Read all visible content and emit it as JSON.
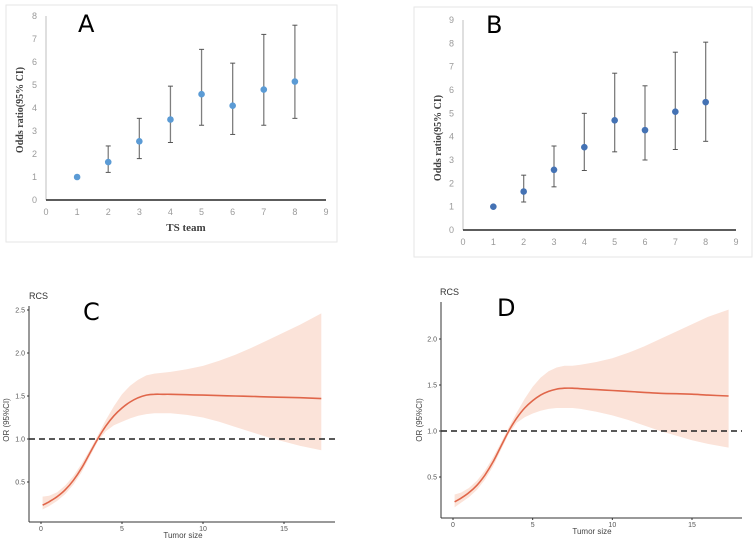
{
  "chart_data": [
    {
      "id": "A",
      "type": "scatter",
      "panel_label": "A",
      "title": "",
      "xlabel": "TS team",
      "ylabel": "Odds ratio(95% CI)",
      "xlim": [
        0,
        9
      ],
      "ylim": [
        0,
        8
      ],
      "xticks": [
        "0",
        "1",
        "2",
        "3",
        "4",
        "5",
        "6",
        "7",
        "8",
        "9"
      ],
      "yticks": [
        "0",
        "1",
        "2",
        "3",
        "4",
        "5",
        "6",
        "7",
        "8"
      ],
      "grid": false,
      "marker_color": "#5b9bd5",
      "errorbar_color": "#7f7f7f",
      "points": [
        {
          "x": 1,
          "y": 1.0,
          "lo": 1.0,
          "hi": 1.0
        },
        {
          "x": 2,
          "y": 1.65,
          "lo": 1.2,
          "hi": 2.35
        },
        {
          "x": 3,
          "y": 2.55,
          "lo": 1.8,
          "hi": 3.55
        },
        {
          "x": 4,
          "y": 3.5,
          "lo": 2.5,
          "hi": 4.95
        },
        {
          "x": 5,
          "y": 4.6,
          "lo": 3.25,
          "hi": 6.55
        },
        {
          "x": 6,
          "y": 4.1,
          "lo": 2.85,
          "hi": 5.95
        },
        {
          "x": 7,
          "y": 4.8,
          "lo": 3.25,
          "hi": 7.2
        },
        {
          "x": 8,
          "y": 5.15,
          "lo": 3.55,
          "hi": 7.6
        }
      ]
    },
    {
      "id": "B",
      "type": "scatter",
      "panel_label": "B",
      "title": "",
      "xlabel": "",
      "ylabel": "Odds ratio(95% CI)",
      "xlim": [
        0,
        9
      ],
      "ylim": [
        0,
        9
      ],
      "xticks": [
        "0",
        "1",
        "2",
        "3",
        "4",
        "5",
        "6",
        "7",
        "8",
        "9"
      ],
      "yticks": [
        "0",
        "1",
        "2",
        "3",
        "4",
        "5",
        "6",
        "7",
        "8",
        "9"
      ],
      "grid": false,
      "marker_color": "#4472b4",
      "errorbar_color": "#7f7f7f",
      "points": [
        {
          "x": 1,
          "y": 1.0,
          "lo": 1.0,
          "hi": 1.0
        },
        {
          "x": 2,
          "y": 1.65,
          "lo": 1.2,
          "hi": 2.35
        },
        {
          "x": 3,
          "y": 2.58,
          "lo": 1.85,
          "hi": 3.6
        },
        {
          "x": 4,
          "y": 3.55,
          "lo": 2.55,
          "hi": 5.0
        },
        {
          "x": 5,
          "y": 4.7,
          "lo": 3.35,
          "hi": 6.72
        },
        {
          "x": 6,
          "y": 4.28,
          "lo": 3.0,
          "hi": 6.18
        },
        {
          "x": 7,
          "y": 5.07,
          "lo": 3.45,
          "hi": 7.62
        },
        {
          "x": 8,
          "y": 5.48,
          "lo": 3.8,
          "hi": 8.05
        }
      ]
    },
    {
      "id": "C",
      "type": "line",
      "panel_label": "C",
      "title": "RCS",
      "xlabel": "Tumor size",
      "ylabel": "OR (95%CI)",
      "xlim": [
        -0.7,
        18
      ],
      "ylim": [
        0.1,
        2.6
      ],
      "xticks": [
        0,
        5,
        10,
        15
      ],
      "xtick_labels": [
        "0",
        "5",
        "10",
        "15"
      ],
      "yticks": [
        0.5,
        1.0,
        1.5,
        2.0,
        2.5
      ],
      "ytick_labels": [
        "0.5",
        "1.0",
        "1.5",
        "2.0",
        "2.5"
      ],
      "reference_line": 1.0,
      "line_color": "#e0664a",
      "band_color": "#fbe3d9",
      "x": [
        0.1,
        0.5,
        1,
        1.5,
        2,
        2.5,
        3,
        3.5,
        4,
        4.5,
        5,
        5.5,
        6,
        6.5,
        7,
        7.5,
        8,
        9,
        10,
        11,
        12,
        13,
        14,
        15,
        16,
        17.3
      ],
      "y": [
        0.23,
        0.27,
        0.33,
        0.41,
        0.52,
        0.66,
        0.83,
        1.0,
        1.15,
        1.27,
        1.36,
        1.43,
        1.48,
        1.51,
        1.52,
        1.52,
        1.52,
        1.515,
        1.51,
        1.505,
        1.5,
        1.495,
        1.49,
        1.485,
        1.48,
        1.47
      ],
      "lower": [
        0.18,
        0.22,
        0.28,
        0.36,
        0.47,
        0.61,
        0.79,
        0.97,
        1.09,
        1.16,
        1.2,
        1.24,
        1.27,
        1.29,
        1.3,
        1.3,
        1.3,
        1.28,
        1.25,
        1.2,
        1.14,
        1.08,
        1.02,
        0.97,
        0.92,
        0.87
      ],
      "upper": [
        0.33,
        0.34,
        0.38,
        0.46,
        0.57,
        0.71,
        0.87,
        1.04,
        1.22,
        1.38,
        1.52,
        1.62,
        1.69,
        1.74,
        1.76,
        1.77,
        1.78,
        1.81,
        1.85,
        1.91,
        1.98,
        2.06,
        2.15,
        2.24,
        2.33,
        2.46
      ]
    },
    {
      "id": "D",
      "type": "line",
      "panel_label": "D",
      "title": "RCS",
      "xlabel": "Tumor size",
      "ylabel": "OR (95%CI)",
      "xlim": [
        -0.7,
        18
      ],
      "ylim": [
        0.05,
        2.4
      ],
      "xticks": [
        0,
        5,
        10,
        15
      ],
      "xtick_labels": [
        "0",
        "5",
        "10",
        "15"
      ],
      "yticks": [
        0.5,
        1.0,
        1.5,
        2.0
      ],
      "ytick_labels": [
        "0.5",
        "1.0",
        "1.5",
        "2.0"
      ],
      "reference_line": 1.0,
      "line_color": "#e0664a",
      "band_color": "#fbe3d9",
      "x": [
        0.1,
        0.5,
        1,
        1.5,
        2,
        2.5,
        3,
        3.5,
        4,
        4.5,
        5,
        5.5,
        6,
        6.5,
        7,
        7.5,
        8,
        9,
        10,
        11,
        12,
        13,
        14,
        15,
        16,
        17.3
      ],
      "y": [
        0.23,
        0.27,
        0.33,
        0.41,
        0.52,
        0.66,
        0.83,
        1.0,
        1.14,
        1.25,
        1.33,
        1.39,
        1.43,
        1.455,
        1.465,
        1.465,
        1.46,
        1.45,
        1.44,
        1.43,
        1.42,
        1.41,
        1.405,
        1.4,
        1.39,
        1.38
      ],
      "lower": [
        0.17,
        0.22,
        0.28,
        0.36,
        0.47,
        0.61,
        0.79,
        0.97,
        1.09,
        1.15,
        1.19,
        1.22,
        1.24,
        1.25,
        1.25,
        1.25,
        1.24,
        1.21,
        1.17,
        1.12,
        1.06,
        1.0,
        0.95,
        0.9,
        0.86,
        0.82
      ],
      "upper": [
        0.31,
        0.33,
        0.38,
        0.46,
        0.57,
        0.71,
        0.87,
        1.04,
        1.2,
        1.35,
        1.48,
        1.58,
        1.65,
        1.69,
        1.71,
        1.71,
        1.72,
        1.75,
        1.79,
        1.85,
        1.92,
        2.0,
        2.08,
        2.16,
        2.24,
        2.32
      ]
    }
  ]
}
